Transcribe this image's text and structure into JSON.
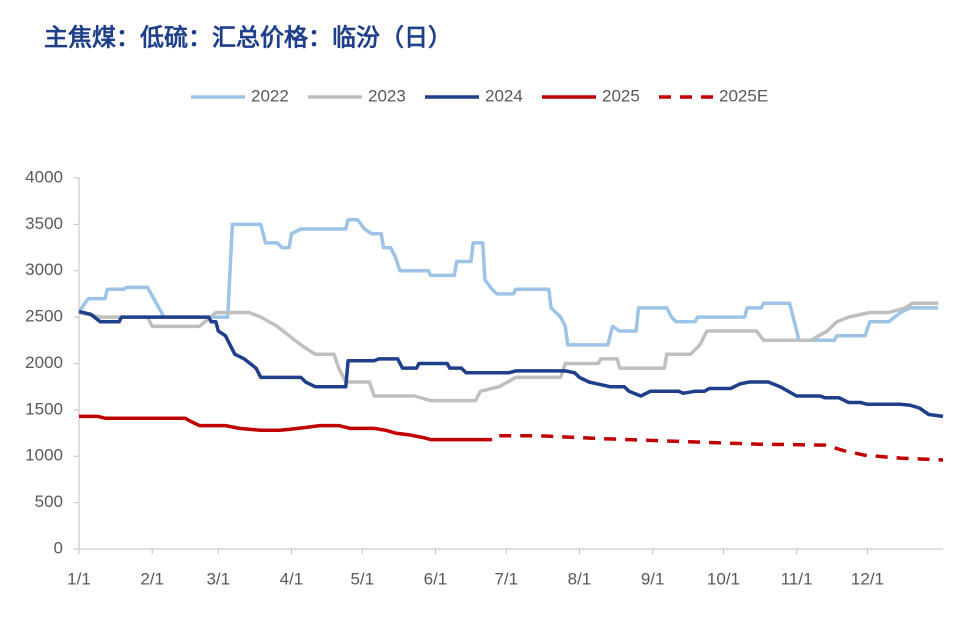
{
  "chart_data": {
    "type": "line",
    "title": "主焦煤：低硫：汇总价格：临汾（日）",
    "xlim": [
      0,
      366
    ],
    "xticks": [
      {
        "value": 0,
        "label": "1/1"
      },
      {
        "value": 31,
        "label": "2/1"
      },
      {
        "value": 59,
        "label": "3/1"
      },
      {
        "value": 90,
        "label": "4/1"
      },
      {
        "value": 120,
        "label": "5/1"
      },
      {
        "value": 151,
        "label": "6/1"
      },
      {
        "value": 181,
        "label": "7/1"
      },
      {
        "value": 212,
        "label": "8/1"
      },
      {
        "value": 243,
        "label": "9/1"
      },
      {
        "value": 273,
        "label": "10/1"
      },
      {
        "value": 304,
        "label": "11/1"
      },
      {
        "value": 334,
        "label": "12/1"
      }
    ],
    "ylim": [
      0,
      4000
    ],
    "yticks": [
      0,
      500,
      1000,
      1500,
      2000,
      2500,
      3000,
      3500,
      4000
    ],
    "series": [
      {
        "name": "2022",
        "color": "#9dc3e6",
        "dashed": false,
        "x": [
          0,
          4,
          11,
          12,
          19,
          20,
          29,
          36,
          63,
          65,
          77,
          79,
          84,
          86,
          89,
          90,
          94,
          113,
          114,
          118,
          121,
          124,
          128,
          129,
          132,
          134,
          136,
          148,
          149,
          159,
          160,
          166,
          167,
          171,
          172,
          175,
          177,
          184,
          185,
          199,
          200,
          204,
          206,
          207,
          224,
          226,
          229,
          236,
          237,
          249,
          251,
          253,
          261,
          262,
          282,
          283,
          289,
          290,
          301,
          304,
          305,
          320,
          321,
          333,
          335,
          343,
          348,
          352,
          364
        ],
        "values": [
          2560,
          2700,
          2700,
          2800,
          2800,
          2820,
          2820,
          2500,
          2500,
          3500,
          3500,
          3300,
          3300,
          3250,
          3250,
          3400,
          3450,
          3450,
          3550,
          3550,
          3450,
          3400,
          3400,
          3250,
          3250,
          3150,
          3000,
          3000,
          2950,
          2950,
          3100,
          3100,
          3300,
          3300,
          2900,
          2800,
          2750,
          2750,
          2800,
          2800,
          2600,
          2500,
          2400,
          2200,
          2200,
          2400,
          2350,
          2350,
          2600,
          2600,
          2500,
          2450,
          2450,
          2500,
          2500,
          2600,
          2600,
          2650,
          2650,
          2350,
          2250,
          2250,
          2300,
          2300,
          2450,
          2450,
          2550,
          2600,
          2600
        ]
      },
      {
        "name": "2023",
        "color": "#bfbfbf",
        "dashed": false,
        "x": [
          0,
          9,
          29,
          31,
          51,
          58,
          72,
          77,
          84,
          89,
          94,
          100,
          108,
          110,
          113,
          123,
          125,
          142,
          149,
          168,
          170,
          178,
          185,
          204,
          206,
          220,
          221,
          228,
          229,
          248,
          249,
          259,
          263,
          266,
          287,
          290,
          310,
          317,
          321,
          326,
          335,
          343,
          350,
          353,
          364
        ],
        "values": [
          2550,
          2500,
          2500,
          2400,
          2400,
          2550,
          2550,
          2500,
          2400,
          2300,
          2200,
          2100,
          2100,
          1950,
          1800,
          1800,
          1650,
          1650,
          1600,
          1600,
          1700,
          1750,
          1850,
          1850,
          2000,
          2000,
          2050,
          2050,
          1950,
          1950,
          2100,
          2100,
          2200,
          2350,
          2350,
          2250,
          2250,
          2350,
          2450,
          2500,
          2550,
          2550,
          2600,
          2650,
          2650
        ]
      },
      {
        "name": "2024",
        "color": "#1f3f8a",
        "dashed": false,
        "x": [
          0,
          5,
          9,
          17,
          18,
          55,
          56,
          58,
          59,
          62,
          66,
          70,
          75,
          77,
          94,
          96,
          100,
          113,
          114,
          125,
          127,
          135,
          137,
          143,
          144,
          156,
          157,
          162,
          164,
          182,
          185,
          206,
          210,
          212,
          216,
          225,
          231,
          233,
          238,
          242,
          254,
          256,
          261,
          265,
          267,
          276,
          280,
          284,
          292,
          297,
          304,
          314,
          316,
          322,
          326,
          331,
          334,
          348,
          352,
          356,
          360,
          366
        ],
        "values": [
          2560,
          2530,
          2450,
          2450,
          2500,
          2500,
          2450,
          2450,
          2350,
          2300,
          2100,
          2050,
          1950,
          1850,
          1850,
          1800,
          1750,
          1750,
          2030,
          2030,
          2050,
          2050,
          1950,
          1950,
          2000,
          2000,
          1950,
          1950,
          1900,
          1900,
          1920,
          1920,
          1900,
          1850,
          1800,
          1750,
          1750,
          1700,
          1650,
          1700,
          1700,
          1680,
          1700,
          1700,
          1730,
          1730,
          1780,
          1800,
          1800,
          1750,
          1650,
          1650,
          1630,
          1630,
          1580,
          1580,
          1560,
          1560,
          1550,
          1520,
          1450,
          1430
        ]
      },
      {
        "name": "2025",
        "color": "#c00000",
        "dashed": false,
        "x": [
          0,
          8,
          11,
          45,
          47,
          51,
          62,
          68,
          77,
          85,
          89,
          96,
          102,
          110,
          115,
          125,
          130,
          134,
          140,
          146,
          149,
          175
        ],
        "values": [
          1430,
          1430,
          1410,
          1410,
          1380,
          1330,
          1330,
          1300,
          1280,
          1280,
          1290,
          1310,
          1330,
          1330,
          1300,
          1300,
          1280,
          1250,
          1230,
          1200,
          1180,
          1180
        ]
      },
      {
        "name": "2025E",
        "color": "#c00000",
        "dashed": true,
        "x": [
          178,
          195,
          221,
          254,
          288,
          316,
          324,
          333,
          348,
          366
        ],
        "values": [
          1220,
          1220,
          1190,
          1160,
          1130,
          1120,
          1060,
          1010,
          980,
          960
        ]
      }
    ]
  }
}
